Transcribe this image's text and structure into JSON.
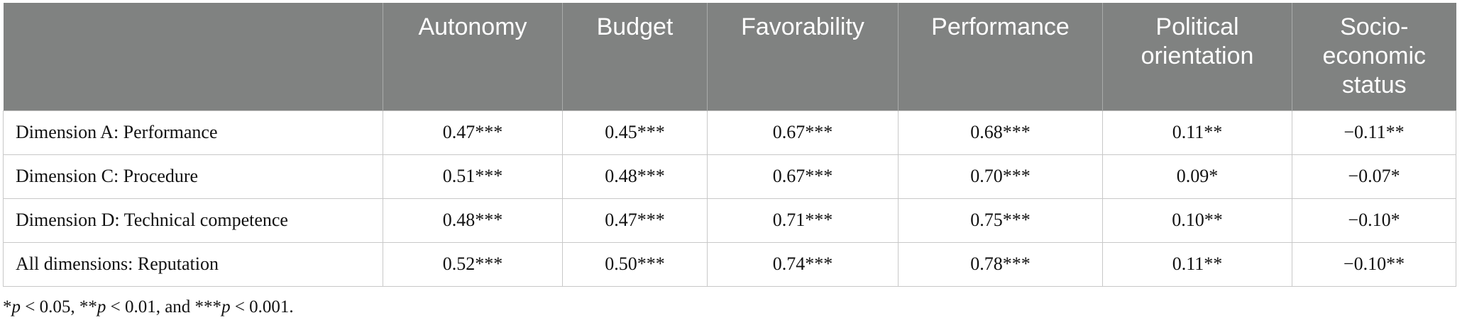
{
  "table": {
    "header": [
      "",
      "Autonomy",
      "Budget",
      "Favorability",
      "Performance",
      "Political orientation",
      "Socio-economic status"
    ],
    "rows": [
      [
        "Dimension A: Performance",
        "0.47***",
        "0.45***",
        "0.67***",
        "0.68***",
        "0.11**",
        "−0.11**"
      ],
      [
        "Dimension C: Procedure",
        "0.51***",
        "0.48***",
        "0.67***",
        "0.70***",
        "0.09*",
        "−0.07*"
      ],
      [
        "Dimension D: Technical competence",
        "0.48***",
        "0.47***",
        "0.71***",
        "0.75***",
        "0.10**",
        "−0.10*"
      ],
      [
        "All dimensions: Reputation",
        "0.52***",
        "0.50***",
        "0.74***",
        "0.78***",
        "0.11**",
        "−0.10**"
      ]
    ]
  },
  "footnote": [
    "*",
    "p",
    " < 0.05, **",
    "p",
    " < 0.01, and ***",
    "p",
    " < 0.001."
  ]
}
